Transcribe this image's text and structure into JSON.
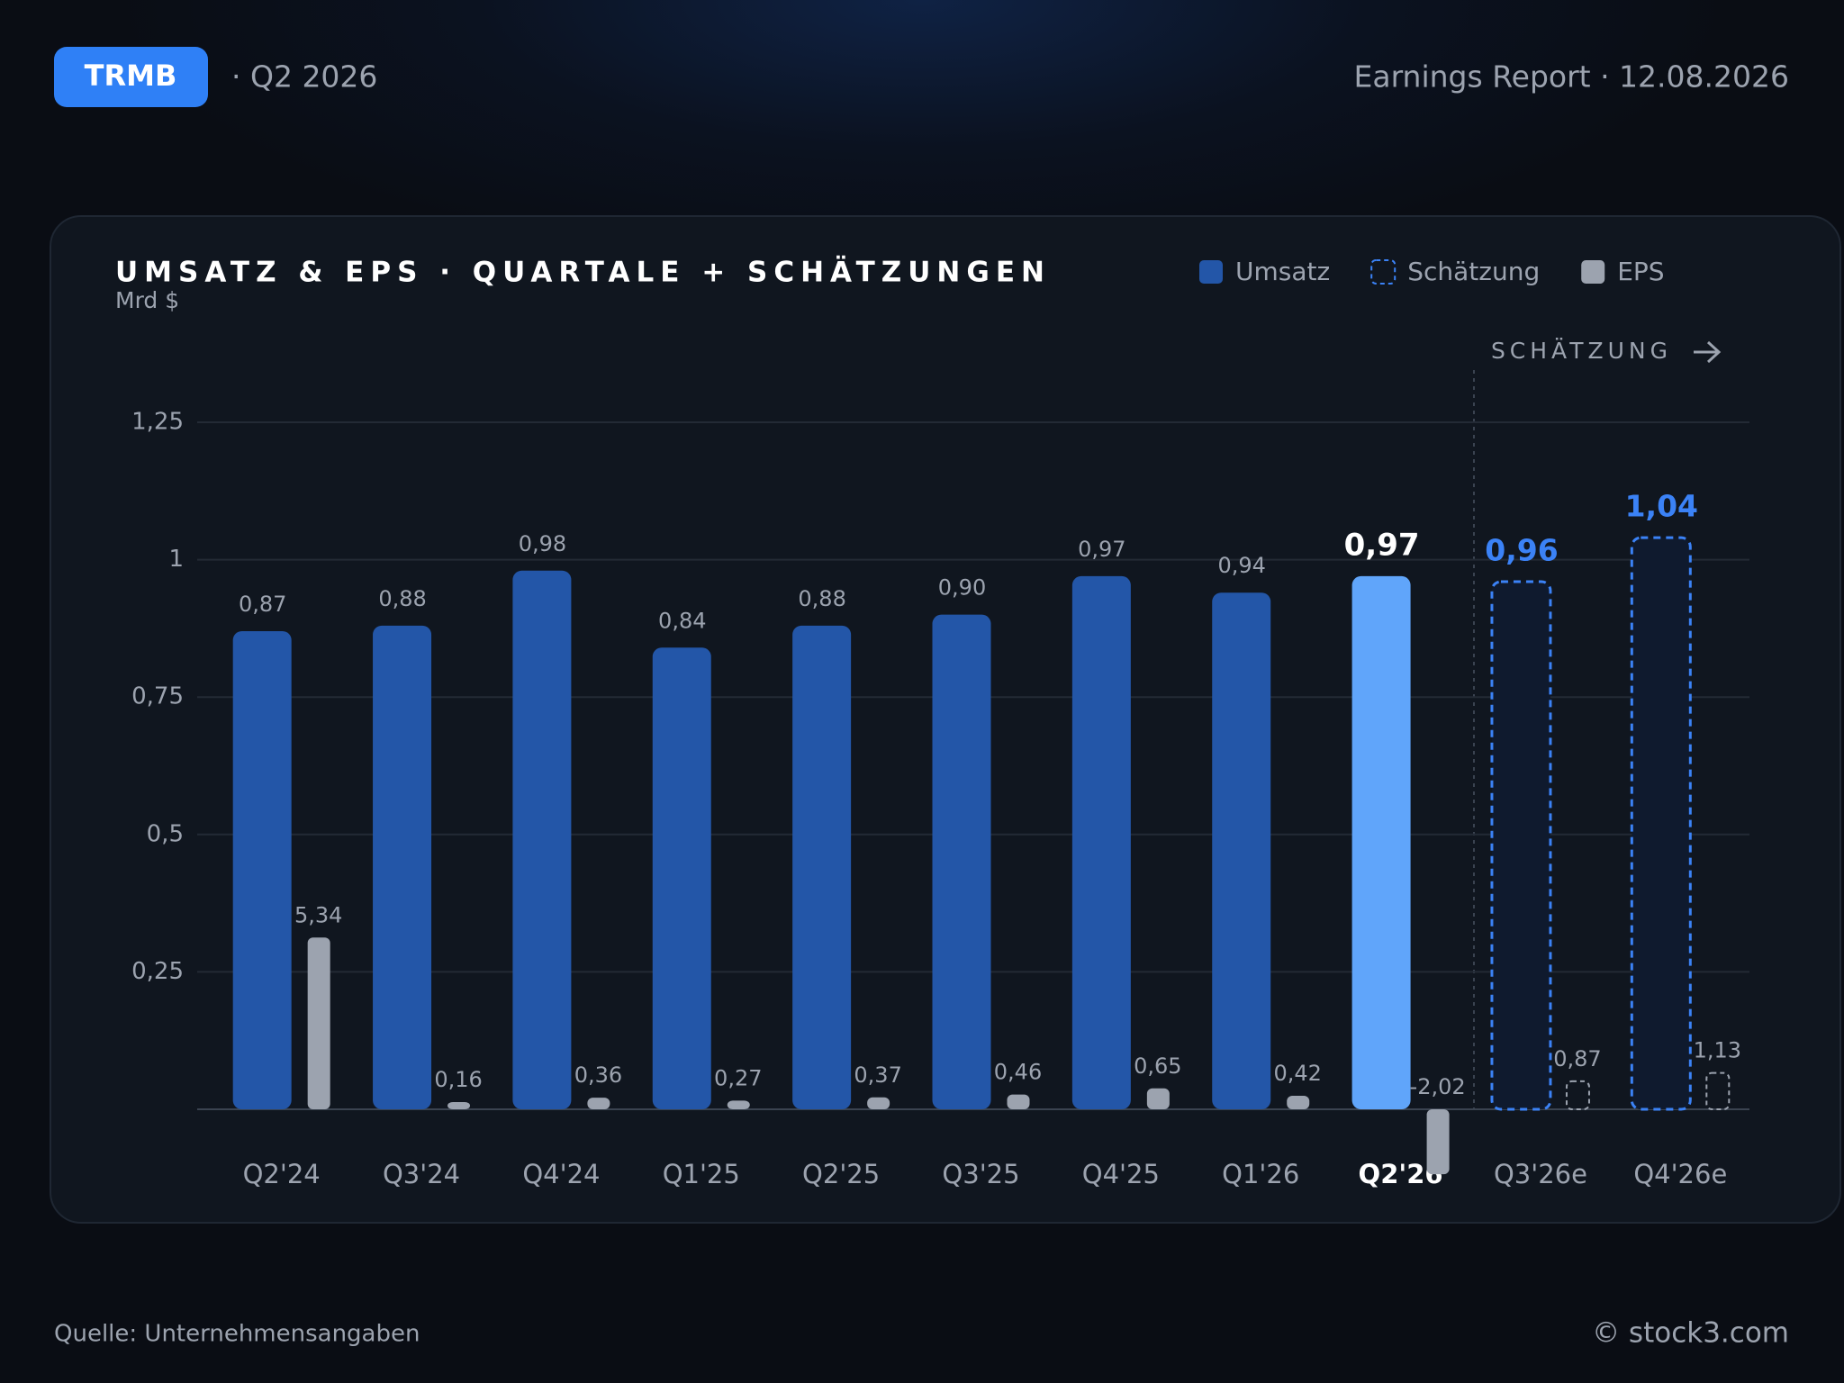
{
  "header": {
    "ticker": "TRMB",
    "period": "· Q2 2026",
    "report": "Earnings Report · 12.08.2026"
  },
  "chart_data": {
    "type": "bar",
    "title": "UMSATZ & EPS · QUARTALE + SCHÄTZUNGEN",
    "subtitle": "Mrd $",
    "annotation": "SCHÄTZUNG",
    "categories": [
      "Q2'24",
      "Q3'24",
      "Q4'24",
      "Q1'25",
      "Q2'25",
      "Q3'25",
      "Q4'25",
      "Q1'26",
      "Q2'26",
      "Q3'26e",
      "Q4'26e"
    ],
    "highlight": "Q2'26",
    "series": [
      {
        "name": "Umsatz",
        "color": "#2356a8",
        "highlight_color": "#60a5fa",
        "values": [
          0.87,
          0.88,
          0.98,
          0.84,
          0.88,
          0.9,
          0.97,
          0.94,
          0.97,
          null,
          null
        ],
        "value_labels": [
          "0,87",
          "0,88",
          "0,98",
          "0,84",
          "0,88",
          "0,90",
          "0,97",
          "0,94",
          "0,97",
          null,
          null
        ]
      },
      {
        "name": "Schätzung",
        "color": "#3b82f6",
        "dashed": true,
        "values": [
          null,
          null,
          null,
          null,
          null,
          null,
          null,
          null,
          null,
          0.96,
          1.04
        ],
        "value_labels": [
          null,
          null,
          null,
          null,
          null,
          null,
          null,
          null,
          null,
          "0,96",
          "1,04"
        ]
      },
      {
        "name": "EPS",
        "color": "#9ca3af",
        "axis": "y2",
        "values": [
          5.34,
          0.16,
          0.36,
          0.27,
          0.37,
          0.46,
          0.65,
          0.42,
          -2.02,
          0.87,
          1.13
        ],
        "value_labels": [
          "5,34",
          "0,16",
          "0,36",
          "0,27",
          "0,37",
          "0,46",
          "0,65",
          "0,42",
          "-2,02",
          "0,87",
          "1,13"
        ]
      }
    ],
    "ylim": [
      0,
      1.25
    ],
    "yticks": [
      {
        "value": 1.25,
        "label": "1,25"
      },
      1,
      {
        "value": 0.75,
        "label": "0,75"
      },
      {
        "value": 0.5,
        "label": "0,5"
      },
      {
        "value": 0.25,
        "label": "0,25"
      }
    ],
    "grid": true
  },
  "footer": {
    "source": "Quelle: Unternehmensangaben",
    "brand": "© stock3.com"
  }
}
